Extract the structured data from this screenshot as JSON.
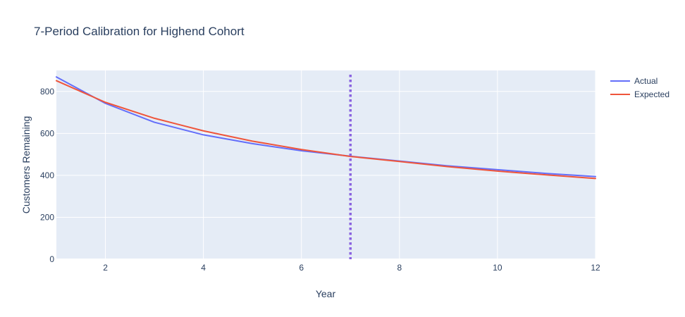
{
  "chart_data": {
    "type": "line",
    "title": "7-Period Calibration for Highend Cohort",
    "xlabel": "Year",
    "ylabel": "Customers Remaining",
    "xlim": [
      1,
      12
    ],
    "ylim": [
      0,
      900
    ],
    "x_ticks": [
      2,
      4,
      6,
      8,
      10,
      12
    ],
    "y_ticks": [
      0,
      200,
      400,
      600,
      800
    ],
    "grid": true,
    "legend_position": "top-right",
    "background_color": "#e5ecf6",
    "x": [
      1,
      2,
      3,
      4,
      5,
      6,
      7,
      8,
      9,
      10,
      11,
      12
    ],
    "series": [
      {
        "name": "Actual",
        "color": "#636efa",
        "values": [
          869,
          743,
          653,
          593,
          551,
          517,
          491,
          468,
          445,
          427,
          409,
          394
        ]
      },
      {
        "name": "Expected",
        "color": "#ef553b",
        "values": [
          851,
          748,
          672,
          612,
          563,
          523,
          490,
          466,
          441,
          420,
          402,
          385
        ]
      }
    ],
    "reference_line": {
      "x": 7,
      "color": "#8a63e0",
      "style": "dotted"
    }
  }
}
